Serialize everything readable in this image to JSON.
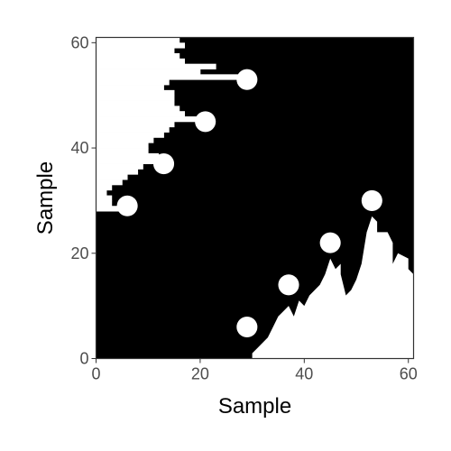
{
  "chart_data": {
    "type": "heatmap",
    "title": "",
    "xlabel": "Sample",
    "ylabel": "Sample",
    "xlim": [
      0,
      61
    ],
    "ylim": [
      0,
      61
    ],
    "x_ticks": [
      0,
      20,
      40,
      60
    ],
    "y_ticks": [
      0,
      20,
      40,
      60
    ],
    "grid": false,
    "legend": "none",
    "colors": {
      "filled": "#000000",
      "empty": "#ffffff",
      "axis_text": "#4d4d4d",
      "frame": "#333333"
    },
    "grid_size": [
      61,
      61
    ],
    "white_regions": {
      "upper_left_row_ranges": [
        [
          28,
          29,
          0,
          6
        ],
        [
          29,
          30,
          0,
          3
        ],
        [
          30,
          31,
          0,
          3
        ],
        [
          31,
          32,
          0,
          2
        ],
        [
          32,
          33,
          0,
          3
        ],
        [
          33,
          34,
          0,
          5
        ],
        [
          34,
          35,
          0,
          6
        ],
        [
          35,
          36,
          0,
          8
        ],
        [
          36,
          37,
          0,
          9
        ],
        [
          37,
          38,
          0,
          13
        ],
        [
          38,
          39,
          0,
          12
        ],
        [
          39,
          40,
          0,
          10
        ],
        [
          40,
          41,
          0,
          10
        ],
        [
          41,
          42,
          0,
          11
        ],
        [
          42,
          43,
          0,
          13
        ],
        [
          43,
          44,
          0,
          14
        ],
        [
          44,
          45,
          0,
          15
        ],
        [
          45,
          46,
          0,
          21
        ],
        [
          46,
          47,
          0,
          17
        ],
        [
          47,
          48,
          0,
          16
        ],
        [
          48,
          49,
          0,
          15
        ],
        [
          49,
          50,
          0,
          15
        ],
        [
          50,
          51,
          0,
          15
        ],
        [
          51,
          52,
          0,
          13
        ],
        [
          52,
          53,
          0,
          14
        ],
        [
          53,
          54,
          0,
          28
        ],
        [
          54,
          55,
          0,
          20
        ],
        [
          55,
          56,
          0,
          23
        ],
        [
          56,
          57,
          0,
          17
        ],
        [
          57,
          58,
          0,
          16
        ],
        [
          58,
          59,
          0,
          15
        ],
        [
          59,
          60,
          0,
          17
        ],
        [
          60,
          61,
          0,
          16
        ]
      ],
      "lower_right_polygon": [
        [
          31,
          0
        ],
        [
          61,
          0
        ],
        [
          61,
          16
        ],
        [
          60,
          17
        ],
        [
          60,
          19
        ],
        [
          58,
          20
        ],
        [
          57,
          18
        ],
        [
          57,
          22
        ],
        [
          56,
          24
        ],
        [
          54,
          24
        ],
        [
          54,
          26
        ],
        [
          53,
          27
        ],
        [
          52,
          24
        ],
        [
          51,
          18
        ],
        [
          50,
          15
        ],
        [
          49,
          13
        ],
        [
          48,
          12
        ],
        [
          47,
          16
        ],
        [
          47,
          18
        ],
        [
          46,
          17
        ],
        [
          45,
          19
        ],
        [
          44,
          16
        ],
        [
          43,
          14
        ],
        [
          42,
          13
        ],
        [
          41,
          12
        ],
        [
          40,
          10
        ],
        [
          39,
          11
        ],
        [
          38,
          8
        ],
        [
          37,
          10
        ],
        [
          36,
          9
        ],
        [
          35,
          8
        ],
        [
          34,
          6
        ],
        [
          33,
          4
        ],
        [
          32,
          3
        ],
        [
          31,
          2
        ],
        [
          30,
          1
        ],
        [
          30,
          0
        ]
      ],
      "blobs": [
        {
          "x": 6,
          "y": 29,
          "r": 2.0
        },
        {
          "x": 13,
          "y": 37,
          "r": 2.0
        },
        {
          "x": 21,
          "y": 45,
          "r": 2.0
        },
        {
          "x": 29,
          "y": 53,
          "r": 2.0
        },
        {
          "x": 29,
          "y": 6,
          "r": 2.0
        },
        {
          "x": 37,
          "y": 14,
          "r": 2.0
        },
        {
          "x": 45,
          "y": 22,
          "r": 2.0
        },
        {
          "x": 53,
          "y": 30,
          "r": 2.0
        }
      ]
    }
  }
}
